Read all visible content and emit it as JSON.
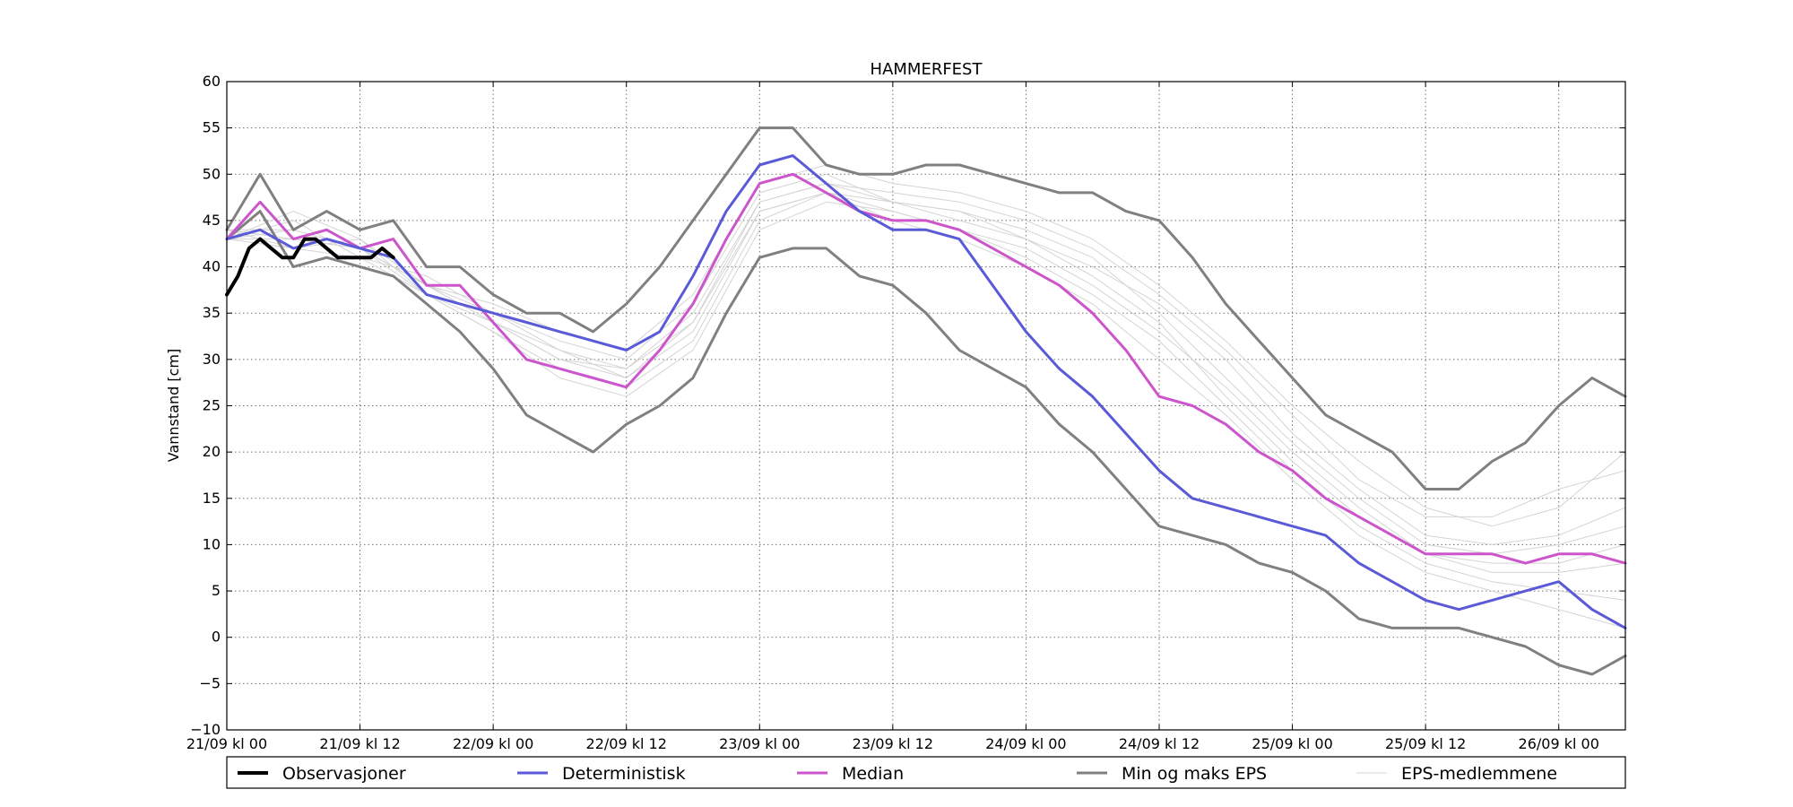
{
  "chart_data": {
    "type": "line",
    "title": "HAMMERFEST",
    "ylabel": "Vannstand [cm]",
    "xlabel": "",
    "xlim": [
      0,
      126
    ],
    "ylim": [
      -10,
      60
    ],
    "yticks": [
      -10,
      -5,
      0,
      5,
      10,
      15,
      20,
      25,
      30,
      35,
      40,
      45,
      50,
      55,
      60
    ],
    "ytick_labels": [
      "−10",
      "−5",
      "0",
      "5",
      "10",
      "15",
      "20",
      "25",
      "30",
      "35",
      "40",
      "45",
      "50",
      "55",
      "60"
    ],
    "xticks": [
      0,
      12,
      24,
      36,
      48,
      60,
      72,
      84,
      96,
      108,
      120
    ],
    "xtick_labels": [
      "21/09 kl 00",
      "21/09 kl 12",
      "22/09 kl 00",
      "22/09 kl 12",
      "23/09 kl 00",
      "23/09 kl 12",
      "24/09 kl 00",
      "24/09 kl 12",
      "25/09 kl 00",
      "25/09 kl 12",
      "26/09 kl 00"
    ],
    "x_unit": "hours from 21/09 kl 00",
    "grid": true,
    "legend_position": "bottom",
    "colors": {
      "observasjoner": "#000000",
      "deterministisk": "#5a5ad8",
      "median": "#cc55cc",
      "minmaks": "#808080",
      "eps": "#d4d4d4"
    },
    "series": [
      {
        "name": "Observasjoner",
        "x": [
          0,
          1,
          2,
          3,
          4,
          5,
          6,
          7,
          8,
          9,
          10,
          11,
          12,
          13,
          14,
          15
        ],
        "values": [
          37,
          39,
          42,
          43,
          42,
          41,
          41,
          43,
          43,
          42,
          41,
          41,
          41,
          41,
          42,
          41
        ]
      },
      {
        "name": "Deterministisk",
        "x": [
          0,
          3,
          6,
          9,
          12,
          15,
          18,
          21,
          24,
          27,
          30,
          33,
          36,
          39,
          42,
          45,
          48,
          51,
          54,
          57,
          60,
          63,
          66,
          69,
          72,
          75,
          78,
          81,
          84,
          87,
          90,
          93,
          96,
          99,
          102,
          105,
          108,
          111,
          114,
          117,
          120,
          123,
          126
        ],
        "values": [
          43,
          44,
          42,
          43,
          42,
          41,
          37,
          36,
          35,
          34,
          33,
          32,
          31,
          33,
          39,
          46,
          51,
          52,
          49,
          46,
          44,
          44,
          43,
          38,
          33,
          29,
          26,
          22,
          18,
          15,
          14,
          13,
          12,
          11,
          8,
          6,
          4,
          3,
          4,
          5,
          6,
          3,
          1
        ]
      },
      {
        "name": "Median",
        "x": [
          0,
          3,
          6,
          9,
          12,
          15,
          18,
          21,
          24,
          27,
          30,
          33,
          36,
          39,
          42,
          45,
          48,
          51,
          54,
          57,
          60,
          63,
          66,
          69,
          72,
          75,
          78,
          81,
          84,
          87,
          90,
          93,
          96,
          99,
          102,
          105,
          108,
          111,
          114,
          117,
          120,
          123,
          126
        ],
        "values": [
          43,
          47,
          43,
          44,
          42,
          43,
          38,
          38,
          34,
          30,
          29,
          28,
          27,
          31,
          36,
          43,
          49,
          50,
          48,
          46,
          45,
          45,
          44,
          42,
          40,
          38,
          35,
          31,
          26,
          25,
          23,
          20,
          18,
          15,
          13,
          11,
          9,
          9,
          9,
          8,
          9,
          9,
          8
        ]
      },
      {
        "name": "Min og maks EPS",
        "x": [
          0,
          3,
          6,
          9,
          12,
          15,
          18,
          21,
          24,
          27,
          30,
          33,
          36,
          39,
          42,
          45,
          48,
          51,
          54,
          57,
          60,
          63,
          66,
          69,
          72,
          75,
          78,
          81,
          84,
          87,
          90,
          93,
          96,
          99,
          102,
          105,
          108,
          111,
          114,
          117,
          120,
          123,
          126
        ],
        "values": [
          44,
          50,
          44,
          46,
          44,
          45,
          40,
          40,
          37,
          35,
          35,
          33,
          36,
          40,
          45,
          50,
          55,
          55,
          51,
          50,
          50,
          51,
          51,
          50,
          49,
          48,
          48,
          46,
          45,
          41,
          36,
          32,
          28,
          24,
          22,
          20,
          16,
          16,
          19,
          21,
          25,
          28,
          26
        ]
      },
      {
        "name": "Min og maks EPS",
        "x": [
          0,
          3,
          6,
          9,
          12,
          15,
          18,
          21,
          24,
          27,
          30,
          33,
          36,
          39,
          42,
          45,
          48,
          51,
          54,
          57,
          60,
          63,
          66,
          69,
          72,
          75,
          78,
          81,
          84,
          87,
          90,
          93,
          96,
          99,
          102,
          105,
          108,
          111,
          114,
          117,
          120,
          123,
          126
        ],
        "values": [
          43,
          46,
          40,
          41,
          40,
          39,
          36,
          33,
          29,
          24,
          22,
          20,
          23,
          25,
          28,
          35,
          41,
          42,
          42,
          39,
          38,
          35,
          31,
          29,
          27,
          23,
          20,
          16,
          12,
          11,
          10,
          8,
          7,
          5,
          2,
          1,
          1,
          1,
          0,
          -1,
          -3,
          -4,
          -2
        ]
      },
      {
        "name": "EPS-medlemmene",
        "x": [
          0,
          6,
          12,
          18,
          24,
          30,
          36,
          42,
          48,
          54,
          60,
          66,
          72,
          78,
          84,
          90,
          96,
          102,
          108,
          114,
          120,
          126
        ],
        "values": [
          43,
          44,
          42,
          38,
          34,
          30,
          28,
          34,
          47,
          49,
          48,
          47,
          45,
          42,
          37,
          31,
          24,
          17,
          13,
          13,
          16,
          18
        ]
      },
      {
        "name": "EPS-medlemmene",
        "x": [
          0,
          6,
          12,
          18,
          24,
          30,
          36,
          42,
          48,
          54,
          60,
          66,
          72,
          78,
          84,
          90,
          96,
          102,
          108,
          114,
          120,
          126
        ],
        "values": [
          44,
          42,
          43,
          37,
          33,
          29,
          27,
          32,
          45,
          48,
          46,
          44,
          41,
          37,
          32,
          25,
          18,
          12,
          8,
          6,
          5,
          4
        ]
      },
      {
        "name": "EPS-medlemmene",
        "x": [
          0,
          6,
          12,
          18,
          24,
          30,
          36,
          42,
          48,
          54,
          60,
          66,
          72,
          78,
          84,
          90,
          96,
          102,
          108,
          114,
          120,
          126
        ],
        "values": [
          43,
          45,
          41,
          39,
          35,
          32,
          30,
          36,
          48,
          50,
          47,
          46,
          44,
          41,
          35,
          28,
          21,
          15,
          10,
          9,
          10,
          12
        ]
      },
      {
        "name": "EPS-medlemmene",
        "x": [
          0,
          6,
          12,
          18,
          24,
          30,
          36,
          42,
          48,
          54,
          60,
          66,
          72,
          78,
          84,
          90,
          96,
          102,
          108,
          114,
          120,
          126
        ],
        "values": [
          44,
          43,
          42,
          38,
          34,
          31,
          28,
          33,
          46,
          48,
          45,
          43,
          40,
          36,
          30,
          24,
          17,
          11,
          7,
          5,
          3,
          1
        ]
      },
      {
        "name": "EPS-medlemmene",
        "x": [
          0,
          6,
          12,
          18,
          24,
          30,
          36,
          42,
          48,
          54,
          60,
          66,
          72,
          78,
          84,
          90,
          96,
          102,
          108,
          114,
          120,
          126
        ],
        "values": [
          43,
          46,
          43,
          38,
          36,
          33,
          31,
          37,
          49,
          51,
          49,
          48,
          46,
          43,
          38,
          32,
          25,
          19,
          14,
          12,
          14,
          20
        ]
      },
      {
        "name": "EPS-medlemmene",
        "x": [
          0,
          6,
          12,
          18,
          24,
          30,
          36,
          42,
          48,
          54,
          60,
          66,
          72,
          78,
          84,
          90,
          96,
          102,
          108,
          114,
          120,
          126
        ],
        "values": [
          43,
          42,
          41,
          37,
          33,
          28,
          26,
          31,
          44,
          47,
          46,
          44,
          42,
          38,
          33,
          27,
          20,
          14,
          9,
          7,
          7,
          8
        ]
      },
      {
        "name": "EPS-medlemmene",
        "x": [
          0,
          6,
          12,
          18,
          24,
          30,
          36,
          42,
          48,
          54,
          60,
          66,
          72,
          78,
          84,
          90,
          96,
          102,
          108,
          114,
          120,
          126
        ],
        "values": [
          44,
          44,
          42,
          38,
          35,
          31,
          29,
          35,
          47,
          49,
          47,
          45,
          43,
          40,
          36,
          30,
          22,
          16,
          11,
          10,
          11,
          14
        ]
      },
      {
        "name": "EPS-medlemmene",
        "x": [
          0,
          6,
          12,
          18,
          24,
          30,
          36,
          42,
          48,
          54,
          60,
          66,
          72,
          78,
          84,
          90,
          96,
          102,
          108,
          114,
          120,
          126
        ],
        "values": [
          43,
          43,
          42,
          37,
          34,
          30,
          29,
          34,
          46,
          48,
          47,
          46,
          43,
          39,
          34,
          26,
          19,
          13,
          9,
          8,
          8,
          10
        ]
      }
    ],
    "legend": [
      {
        "label": "Observasjoner",
        "key": "observasjoner"
      },
      {
        "label": "Deterministisk",
        "key": "deterministisk"
      },
      {
        "label": "Median",
        "key": "median"
      },
      {
        "label": "Min og maks EPS",
        "key": "minmaks"
      },
      {
        "label": "EPS-medlemmene",
        "key": "eps"
      }
    ]
  }
}
